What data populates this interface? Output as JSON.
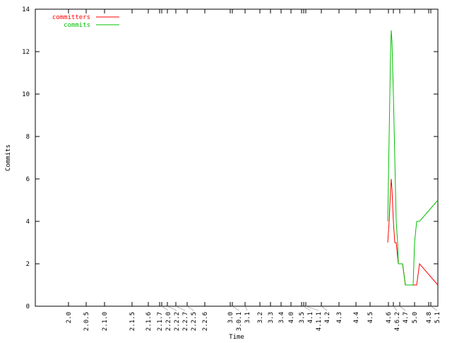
{
  "chart_data": {
    "type": "line",
    "title": "",
    "xlabel": "Time",
    "ylabel": "Commits",
    "xlim": [
      0,
      570
    ],
    "ylim": [
      0,
      14
    ],
    "yticks": [
      0,
      2,
      4,
      6,
      8,
      10,
      12,
      14
    ],
    "xticks": [
      {
        "x": 47,
        "label": "2.0"
      },
      {
        "x": 72,
        "label": "2.0.5"
      },
      {
        "x": 98,
        "label": "2.1.0"
      },
      {
        "x": 137,
        "label": "2.1.5"
      },
      {
        "x": 160,
        "label": "2.1.6"
      },
      {
        "x": 176,
        "label": "2.1.7"
      },
      {
        "x": 179,
        "label": "2.2.0"
      },
      {
        "x": 187,
        "label": "2.2.2"
      },
      {
        "x": 199,
        "label": "2.2.7"
      },
      {
        "x": 215,
        "label": "2.2.5"
      },
      {
        "x": 240,
        "label": "2.2.6"
      },
      {
        "x": 276,
        "label": "3.0"
      },
      {
        "x": 279,
        "label": "3.0.1"
      },
      {
        "x": 297,
        "label": "3.1"
      },
      {
        "x": 318,
        "label": "3.2"
      },
      {
        "x": 333,
        "label": "3.3"
      },
      {
        "x": 348,
        "label": "3.4"
      },
      {
        "x": 362,
        "label": "4.0"
      },
      {
        "x": 377,
        "label": "3.5"
      },
      {
        "x": 380,
        "label": "4.1"
      },
      {
        "x": 383,
        "label": "4.1.1"
      },
      {
        "x": 405,
        "label": "4.2"
      },
      {
        "x": 430,
        "label": "4.3"
      },
      {
        "x": 454,
        "label": "4.4"
      },
      {
        "x": 474,
        "label": "4.5"
      },
      {
        "x": 500,
        "label": "4.6"
      },
      {
        "x": 507,
        "label": "4.6.2"
      },
      {
        "x": 516,
        "label": "4.7"
      },
      {
        "x": 537,
        "label": "5.0"
      },
      {
        "x": 557,
        "label": "4.8"
      },
      {
        "x": 560,
        "label": "5.1"
      }
    ],
    "grid": false,
    "legend": "top-left",
    "series": [
      {
        "name": "committers",
        "color": "#ff0000",
        "points": [
          [
            499,
            3
          ],
          [
            501,
            4
          ],
          [
            503,
            5.5
          ],
          [
            504,
            6
          ],
          [
            505,
            5.5
          ],
          [
            507,
            4
          ],
          [
            509,
            3
          ],
          [
            511,
            3
          ],
          [
            514,
            2
          ],
          [
            520,
            2
          ],
          [
            524,
            1
          ],
          [
            540,
            1
          ],
          [
            544,
            2
          ],
          [
            570,
            1
          ]
        ]
      },
      {
        "name": "commits",
        "color": "#00c000",
        "points": [
          [
            499,
            4
          ],
          [
            501,
            8
          ],
          [
            503,
            12
          ],
          [
            504,
            13
          ],
          [
            505,
            12.5
          ],
          [
            507,
            10
          ],
          [
            509,
            7
          ],
          [
            511,
            4
          ],
          [
            513,
            3
          ],
          [
            514,
            2
          ],
          [
            520,
            2
          ],
          [
            524,
            1
          ],
          [
            535,
            1
          ],
          [
            537,
            3
          ],
          [
            540,
            4
          ],
          [
            544,
            4
          ],
          [
            570,
            5
          ]
        ]
      }
    ]
  }
}
